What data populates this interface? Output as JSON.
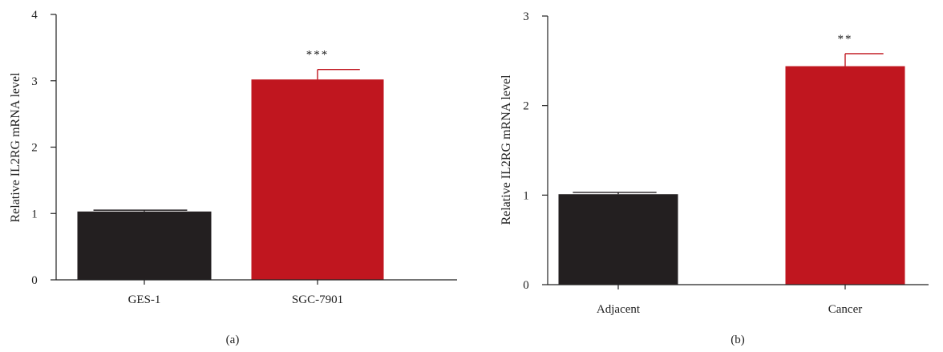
{
  "colors": {
    "black_bar": "#231f20",
    "red_bar": "#c0161f",
    "axis": "#222222"
  },
  "chart_data": [
    {
      "type": "bar",
      "panel_label": "(a)",
      "ylabel": "Relative IL2RG mRNA level",
      "xlabel": "",
      "ylim": [
        0,
        4
      ],
      "yticks": [
        0,
        1,
        2,
        3,
        4
      ],
      "categories": [
        "GES-1",
        "SGC-7901"
      ],
      "values": [
        1.03,
        3.02
      ],
      "errors": [
        0.02,
        0.15
      ],
      "bar_colors": [
        "#231f20",
        "#c0161f"
      ],
      "significance": [
        "",
        "***"
      ],
      "grid": false
    },
    {
      "type": "bar",
      "panel_label": "(b)",
      "ylabel": "Relative IL2RG mRNA level",
      "xlabel": "",
      "ylim": [
        0,
        3
      ],
      "yticks": [
        0,
        1,
        2,
        3
      ],
      "categories": [
        "Adjacent",
        "Cancer"
      ],
      "values": [
        1.01,
        2.44
      ],
      "errors": [
        0.02,
        0.14
      ],
      "bar_colors": [
        "#231f20",
        "#c0161f"
      ],
      "significance": [
        "",
        "**"
      ],
      "grid": false
    }
  ]
}
